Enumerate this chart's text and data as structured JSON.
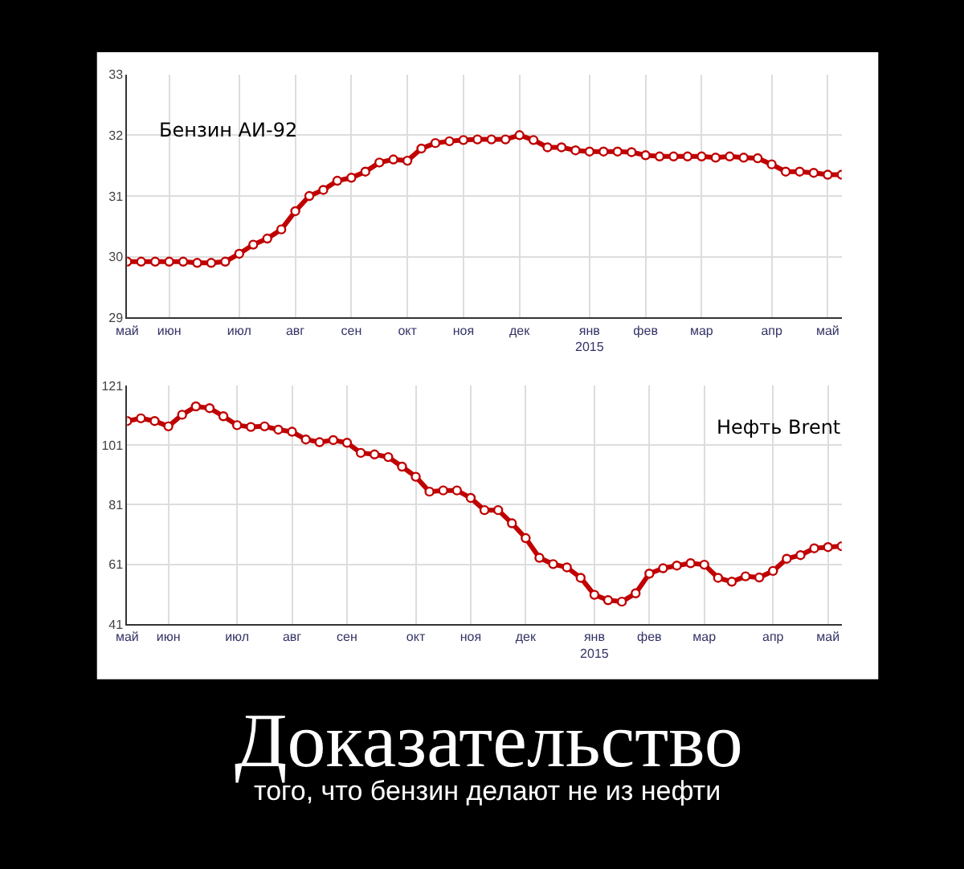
{
  "chart_data": [
    {
      "type": "line",
      "title": "Бензин АИ-92",
      "categories": [
        "май",
        null,
        null,
        "июн",
        null,
        null,
        null,
        null,
        "июл",
        null,
        null,
        null,
        "авг",
        null,
        null,
        null,
        "сен",
        null,
        null,
        null,
        "окт",
        null,
        null,
        null,
        "ноя",
        null,
        null,
        null,
        "дек",
        null,
        null,
        null,
        null,
        "янв\n2015",
        null,
        null,
        null,
        "фев",
        null,
        null,
        null,
        "мар",
        null,
        null,
        null,
        null,
        "апр",
        null,
        null,
        null,
        "май",
        null
      ],
      "series": [
        {
          "color": "#c00000",
          "values": [
            29.92,
            29.92,
            29.92,
            29.92,
            29.92,
            29.9,
            29.9,
            29.92,
            30.05,
            30.2,
            30.3,
            30.45,
            30.75,
            31.0,
            31.1,
            31.25,
            31.3,
            31.4,
            31.55,
            31.6,
            31.58,
            31.78,
            31.87,
            31.9,
            31.92,
            31.93,
            31.93,
            31.93,
            32.0,
            31.92,
            31.8,
            31.8,
            31.75,
            31.73,
            31.73,
            31.73,
            31.72,
            31.67,
            31.65,
            31.65,
            31.65,
            31.65,
            31.63,
            31.65,
            31.63,
            31.62,
            31.52,
            31.4,
            31.4,
            31.38,
            31.35,
            31.35
          ]
        }
      ],
      "ylim": [
        29,
        33
      ],
      "yticks": [
        29,
        30,
        31,
        32,
        33
      ],
      "grid": true,
      "marker": "circle",
      "line_style": "solid"
    },
    {
      "type": "line",
      "title": "Нефть Brent",
      "categories": [
        "май",
        null,
        null,
        "июн",
        null,
        null,
        null,
        null,
        "июл",
        null,
        null,
        null,
        "авг",
        null,
        null,
        null,
        "сен",
        null,
        null,
        null,
        null,
        "окт",
        null,
        null,
        null,
        "ноя",
        null,
        null,
        null,
        "дек",
        null,
        null,
        null,
        null,
        "янв\n2015",
        null,
        null,
        null,
        "фев",
        null,
        null,
        null,
        "мар",
        null,
        null,
        null,
        null,
        "апр",
        null,
        null,
        null,
        "май",
        null
      ],
      "series": [
        {
          "color": "#c00000",
          "values": [
            109.1,
            110,
            109.1,
            107.3,
            111.2,
            114,
            113.4,
            110.7,
            107.7,
            107.1,
            107.3,
            106.2,
            105.5,
            102.9,
            102,
            102.7,
            101.8,
            98.4,
            97.9,
            97,
            93.8,
            90.4,
            85.4,
            85.8,
            85.8,
            83.3,
            79.2,
            79.2,
            74.8,
            69.8,
            63.2,
            61.1,
            60,
            56.5,
            50.8,
            49,
            48.5,
            51.3,
            57.9,
            59.7,
            60.6,
            61.4,
            60.9,
            56.5,
            55.2,
            57,
            56.6,
            58.8,
            62.9,
            64.1,
            66.4,
            66.8,
            67.1
          ]
        }
      ],
      "ylim": [
        41,
        121
      ],
      "yticks": [
        41,
        61,
        81,
        101,
        121
      ],
      "grid": true,
      "marker": "circle",
      "line_style": "solid"
    },
    {
      "type": "other",
      "title": "Доказательство",
      "subtitle": "того, что бензин делают не из нефти"
    }
  ]
}
